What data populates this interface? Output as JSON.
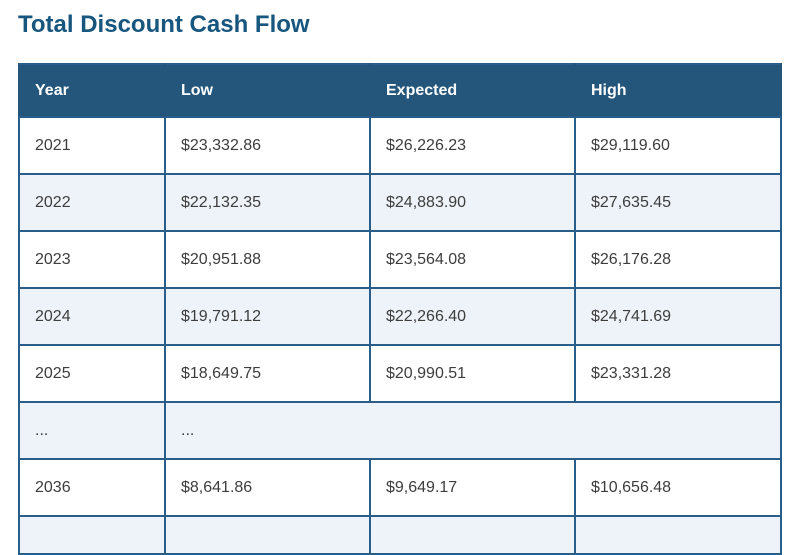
{
  "page": {
    "title": "Total Discount Cash Flow"
  },
  "colors": {
    "title_text": "#17567E",
    "header_background": "#24567C",
    "header_text": "#FFFFFF",
    "grid_border": "#285E89",
    "row_alt_background": "#EDF3F8",
    "row_background": "#FFFFFF",
    "cell_text": "#3D3D3D"
  },
  "table": {
    "columns": [
      "Year",
      "Low",
      "Expected",
      "High"
    ],
    "rows": [
      {
        "cells": [
          "2021",
          "$23,332.86",
          "$26,226.23",
          "$29,119.60"
        ]
      },
      {
        "cells": [
          "2022",
          "$22,132.35",
          "$24,883.90",
          "$27,635.45"
        ]
      },
      {
        "cells": [
          "2023",
          "$20,951.88",
          "$23,564.08",
          "$26,176.28"
        ]
      },
      {
        "cells": [
          "2024",
          "$19,791.12",
          "$22,266.40",
          "$24,741.69"
        ]
      },
      {
        "cells": [
          "2025",
          "$18,649.75",
          "$20,990.51",
          "$23,331.28"
        ]
      },
      {
        "cells": [
          "...",
          "..."
        ],
        "colspans": [
          1,
          3
        ]
      },
      {
        "cells": [
          "2036",
          "$8,641.86",
          "$9,649.17",
          "$10,656.48"
        ]
      },
      {
        "cells": [
          "",
          "",
          "",
          ""
        ]
      }
    ]
  },
  "chart_data": {
    "type": "table",
    "title": "Total Discount Cash Flow",
    "columns": [
      "Year",
      "Low",
      "Expected",
      "High"
    ],
    "rows": [
      [
        "2021",
        23332.86,
        26226.23,
        29119.6
      ],
      [
        "2022",
        22132.35,
        24883.9,
        27635.45
      ],
      [
        "2023",
        20951.88,
        23564.08,
        26176.28
      ],
      [
        "2024",
        19791.12,
        22266.4,
        24741.69
      ],
      [
        "2025",
        18649.75,
        20990.51,
        23331.28
      ],
      [
        "...",
        null,
        null,
        null
      ],
      [
        "2036",
        8641.86,
        9649.17,
        10656.48
      ]
    ],
    "notes": "Rows 2026-2035 elided with an ellipsis row; a following row is clipped at the bottom edge of the viewport"
  }
}
